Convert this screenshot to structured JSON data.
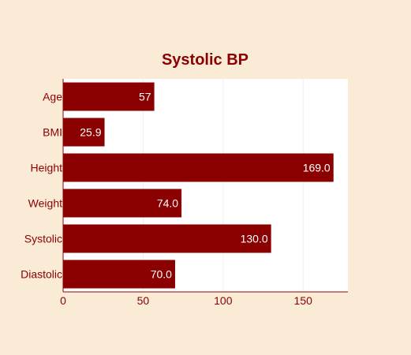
{
  "chart_data": {
    "type": "bar",
    "orientation": "horizontal",
    "title": "Systolic BP",
    "xlabel": "",
    "ylabel": "",
    "categories": [
      "Age",
      "BMI",
      "Height",
      "Weight",
      "Systolic",
      "Diastolic"
    ],
    "values": [
      57,
      25.9,
      169.0,
      74.0,
      130.0,
      70.0
    ],
    "data_labels": [
      "57",
      "25.9",
      "169.0",
      "74.0",
      "130.0",
      "70.0"
    ],
    "xlim": [
      0,
      178
    ],
    "xticks": [
      0,
      50,
      100,
      150
    ],
    "xtick_labels": [
      "0",
      "50",
      "100",
      "150"
    ],
    "grid": "vertical",
    "legend": "none",
    "colors": {
      "bar": "#8b0000",
      "text": "#8b0000",
      "data_label": "#ffffff",
      "plot_background": "#ffffff",
      "page_background": "#faebd7",
      "grid": "#eeeeee"
    }
  }
}
